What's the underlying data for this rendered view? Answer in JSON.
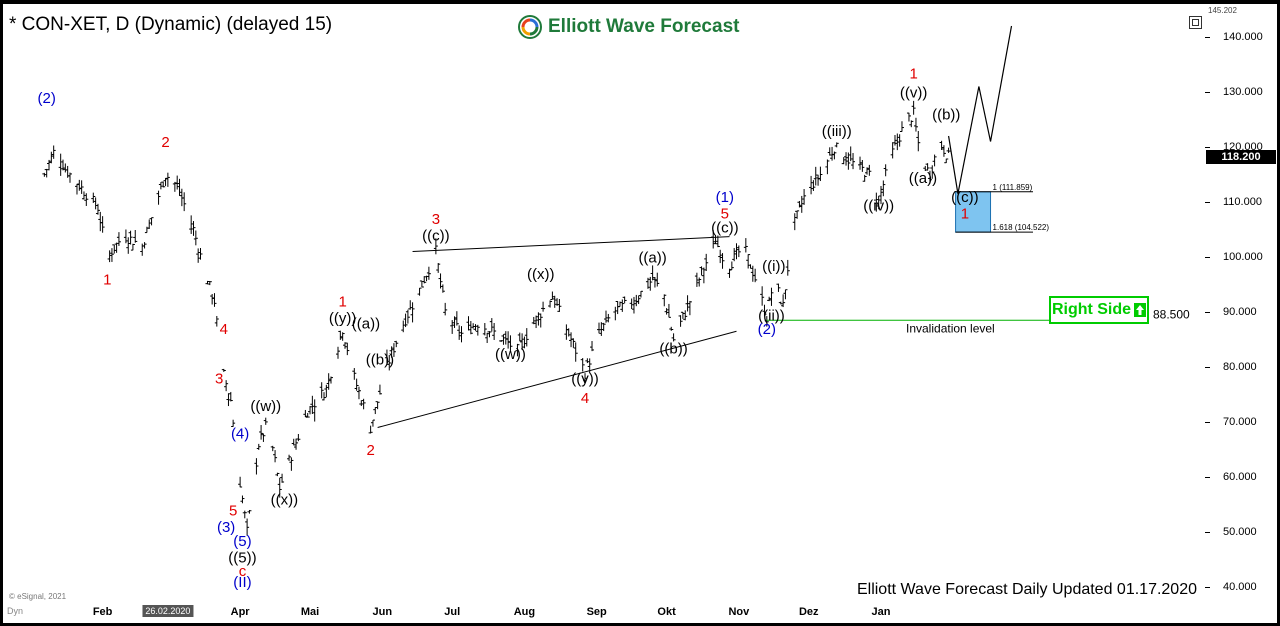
{
  "header": {
    "symbol": "* CON-XET, D (Dynamic) (delayed 15)",
    "brand": "Elliott Wave Forecast"
  },
  "footer": {
    "updated": "Elliott Wave Forecast Daily Updated 01.17.2020",
    "credit": "© eSignal, 2021"
  },
  "badges": {
    "right_side": "Right Side",
    "last_price": "118.200",
    "max_price": "145.202",
    "date": "26.02.2020",
    "x_prefix": "Dyn"
  },
  "colors": {
    "bars": "#000000",
    "wave_red": "#e00000",
    "wave_blue": "#0000cc",
    "invalidation": "#00b000",
    "box_fill": "#7ec4f0",
    "box_border": "#1a6fb0",
    "brand": "#1f7a3a"
  },
  "chart_data": {
    "type": "ohlc",
    "ylim": [
      40,
      145.202
    ],
    "y_ticks": [
      "140.000",
      "130.000",
      "120.000",
      "110.000",
      "100.000",
      "90.000",
      "80.000",
      "70.000",
      "60.000",
      "50.000",
      "40.000"
    ],
    "x_ticks": [
      {
        "label": "Feb",
        "date": "2019-02-01"
      },
      {
        "label": "Apr",
        "date": "2019-04-01"
      },
      {
        "label": "Mai",
        "date": "2019-05-01"
      },
      {
        "label": "Jun",
        "date": "2019-06-01"
      },
      {
        "label": "Jul",
        "date": "2019-07-01"
      },
      {
        "label": "Aug",
        "date": "2019-08-01"
      },
      {
        "label": "Sep",
        "date": "2019-09-01"
      },
      {
        "label": "Okt",
        "date": "2019-10-01"
      },
      {
        "label": "Nov",
        "date": "2019-11-01"
      },
      {
        "label": "Dez",
        "date": "2019-12-01"
      },
      {
        "label": "Jan",
        "date": "2020-01-01"
      }
    ],
    "date_marker": {
      "label": "26.02.2020",
      "date": "2019-03-01"
    },
    "price_path": [
      [
        "2019-01-05",
        113
      ],
      [
        "2019-01-12",
        120
      ],
      [
        "2019-01-16",
        116
      ],
      [
        "2019-01-30",
        109
      ],
      [
        "2019-02-03",
        100
      ],
      [
        "2019-02-10",
        104
      ],
      [
        "2019-02-18",
        102
      ],
      [
        "2019-02-28",
        115
      ],
      [
        "2019-03-05",
        113
      ],
      [
        "2019-03-12",
        105
      ],
      [
        "2019-03-17",
        97
      ],
      [
        "2019-03-21",
        92
      ],
      [
        "2019-03-24",
        80
      ],
      [
        "2019-03-28",
        74
      ],
      [
        "2019-03-31",
        62
      ],
      [
        "2019-04-04",
        50
      ],
      [
        "2019-04-09",
        66
      ],
      [
        "2019-04-13",
        70
      ],
      [
        "2019-04-18",
        58
      ],
      [
        "2019-04-23",
        64
      ],
      [
        "2019-04-30",
        72
      ],
      [
        "2019-05-08",
        76
      ],
      [
        "2019-05-15",
        87
      ],
      [
        "2019-05-20",
        78
      ],
      [
        "2019-05-27",
        69
      ],
      [
        "2019-06-03",
        80
      ],
      [
        "2019-06-09",
        87
      ],
      [
        "2019-06-17",
        94
      ],
      [
        "2019-06-24",
        101
      ],
      [
        "2019-06-28",
        90
      ],
      [
        "2019-07-05",
        86
      ],
      [
        "2019-07-12",
        88
      ],
      [
        "2019-07-20",
        86
      ],
      [
        "2019-07-29",
        83
      ],
      [
        "2019-08-05",
        88
      ],
      [
        "2019-08-13",
        93
      ],
      [
        "2019-08-20",
        86
      ],
      [
        "2019-08-27",
        79
      ],
      [
        "2019-09-02",
        86
      ],
      [
        "2019-09-08",
        90
      ],
      [
        "2019-09-17",
        92
      ],
      [
        "2019-09-25",
        96
      ],
      [
        "2019-09-30",
        93
      ],
      [
        "2019-10-04",
        85
      ],
      [
        "2019-10-09",
        90
      ],
      [
        "2019-10-15",
        96
      ],
      [
        "2019-10-22",
        103
      ],
      [
        "2019-10-27",
        98
      ],
      [
        "2019-11-03",
        102
      ],
      [
        "2019-11-09",
        95
      ],
      [
        "2019-11-13",
        89
      ],
      [
        "2019-11-16",
        96
      ],
      [
        "2019-11-20",
        91
      ],
      [
        "2019-11-24",
        105
      ],
      [
        "2019-11-30",
        112
      ],
      [
        "2019-12-06",
        115
      ],
      [
        "2019-12-12",
        120
      ],
      [
        "2019-12-20",
        117
      ],
      [
        "2019-12-27",
        115
      ],
      [
        "2019-12-31",
        110
      ],
      [
        "2020-01-05",
        118
      ],
      [
        "2020-01-11",
        124
      ],
      [
        "2020-01-15",
        126
      ],
      [
        "2020-01-18",
        118
      ],
      [
        "2020-01-22",
        115
      ],
      [
        "2020-01-26",
        121
      ],
      [
        "2020-01-30",
        118.2
      ]
    ],
    "projection": [
      [
        "2020-01-30",
        122
      ],
      [
        "2020-02-03",
        111.5
      ],
      [
        "2020-02-12",
        131
      ],
      [
        "2020-02-17",
        121
      ],
      [
        "2020-02-26",
        142
      ]
    ],
    "triangle_lines": [
      {
        "from": [
          "2019-06-14",
          101
        ],
        "to": [
          "2019-10-28",
          103.7
        ]
      },
      {
        "from": [
          "2019-05-30",
          69
        ],
        "to": [
          "2019-10-31",
          86.5
        ]
      }
    ],
    "target_zone": {
      "from_date": "2020-02-02",
      "to_date": "2020-02-17",
      "top": 111.859,
      "bottom": 104.522
    },
    "fib_levels": [
      {
        "label": "1 (111.859)",
        "value": 111.859
      },
      {
        "label": "1.618 (104.522)",
        "value": 104.522
      }
    ],
    "invalidation": {
      "value": 88.5,
      "value_label": "88.500",
      "label": "Invalidation level",
      "from_date": "2019-11-13"
    },
    "wave_labels": [
      {
        "text": "(2)",
        "color": "blue",
        "date": "2019-01-08",
        "price": 128
      },
      {
        "text": "2",
        "color": "red",
        "date": "2019-02-28",
        "price": 120
      },
      {
        "text": "1",
        "color": "red",
        "date": "2019-02-03",
        "price": 95
      },
      {
        "text": "4",
        "color": "red",
        "date": "2019-03-25",
        "price": 86
      },
      {
        "text": "3",
        "color": "red",
        "date": "2019-03-23",
        "price": 77
      },
      {
        "text": "((w))",
        "color": "black",
        "date": "2019-04-12",
        "price": 72
      },
      {
        "text": "(4)",
        "color": "blue",
        "date": "2019-04-01",
        "price": 67
      },
      {
        "text": "((x))",
        "color": "black",
        "date": "2019-04-20",
        "price": 55
      },
      {
        "text": "5",
        "color": "red",
        "date": "2019-03-29",
        "price": 53
      },
      {
        "text": "(3)",
        "color": "blue",
        "date": "2019-03-26",
        "price": 50
      },
      {
        "text": "(5)",
        "color": "blue",
        "date": "2019-04-02",
        "price": 47.5
      },
      {
        "text": "((5))",
        "color": "black",
        "date": "2019-04-02",
        "price": 44.5
      },
      {
        "text": "c",
        "color": "red",
        "date": "2019-04-02",
        "price": 42
      },
      {
        "text": "(II)",
        "color": "blue",
        "date": "2019-04-02",
        "price": 40
      },
      {
        "text": "1",
        "color": "red",
        "date": "2019-05-15",
        "price": 91
      },
      {
        "text": "((y))",
        "color": "black",
        "date": "2019-05-15",
        "price": 88
      },
      {
        "text": "((a))",
        "color": "black",
        "date": "2019-05-25",
        "price": 87
      },
      {
        "text": "((b))",
        "color": "black",
        "date": "2019-05-31",
        "price": 80.5
      },
      {
        "text": "2",
        "color": "red",
        "date": "2019-05-27",
        "price": 64
      },
      {
        "text": "3",
        "color": "red",
        "date": "2019-06-24",
        "price": 106
      },
      {
        "text": "((c))",
        "color": "black",
        "date": "2019-06-24",
        "price": 103
      },
      {
        "text": "((w))",
        "color": "black",
        "date": "2019-07-26",
        "price": 81.5
      },
      {
        "text": "((x))",
        "color": "black",
        "date": "2019-08-08",
        "price": 96
      },
      {
        "text": "((y))",
        "color": "black",
        "date": "2019-08-27",
        "price": 77
      },
      {
        "text": "4",
        "color": "red",
        "date": "2019-08-27",
        "price": 73.5
      },
      {
        "text": "((a))",
        "color": "black",
        "date": "2019-09-25",
        "price": 99
      },
      {
        "text": "((b))",
        "color": "black",
        "date": "2019-10-04",
        "price": 82.5
      },
      {
        "text": "(1)",
        "color": "blue",
        "date": "2019-10-26",
        "price": 110
      },
      {
        "text": "5",
        "color": "red",
        "date": "2019-10-26",
        "price": 107
      },
      {
        "text": "((c))",
        "color": "black",
        "date": "2019-10-26",
        "price": 104.5
      },
      {
        "text": "((i))",
        "color": "black",
        "date": "2019-11-16",
        "price": 97.5
      },
      {
        "text": "((ii))",
        "color": "black",
        "date": "2019-11-15",
        "price": 88.5
      },
      {
        "text": "(2)",
        "color": "blue",
        "date": "2019-11-13",
        "price": 86
      },
      {
        "text": "((iii))",
        "color": "black",
        "date": "2019-12-13",
        "price": 122
      },
      {
        "text": "((iv))",
        "color": "black",
        "date": "2019-12-31",
        "price": 108.5
      },
      {
        "text": "1",
        "color": "red",
        "date": "2020-01-15",
        "price": 132.5
      },
      {
        "text": "((v))",
        "color": "black",
        "date": "2020-01-15",
        "price": 129
      },
      {
        "text": "((b))",
        "color": "black",
        "date": "2020-01-29",
        "price": 125
      },
      {
        "text": "((a))",
        "color": "black",
        "date": "2020-01-19",
        "price": 113.5
      },
      {
        "text": "((c))",
        "color": "black",
        "date": "2020-02-06",
        "price": 110
      },
      {
        "text": "1",
        "color": "red",
        "date": "2020-02-06",
        "price": 107
      }
    ]
  }
}
